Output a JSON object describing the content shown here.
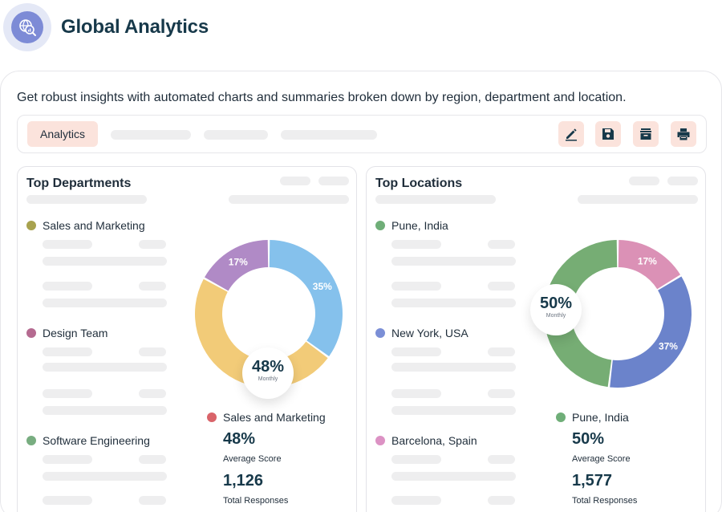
{
  "app": {
    "title": "Global Analytics",
    "logo_icon": "globe-analytics-icon"
  },
  "description": "Get robust insights with automated charts and summaries broken down by region, department and location.",
  "toolbar": {
    "tab_label": "Analytics",
    "buttons": [
      {
        "icon": "edit-icon"
      },
      {
        "icon": "save-icon"
      },
      {
        "icon": "archive-icon"
      },
      {
        "icon": "print-icon"
      }
    ]
  },
  "colors": {
    "accent_bg": "#fbe3dc",
    "title": "#17394a"
  },
  "departments": {
    "title": "Top Departments",
    "legend": [
      {
        "label": "Sales and Marketing",
        "color": "#a8a24e"
      },
      {
        "label": "Design Team",
        "color": "#b56a90"
      },
      {
        "label": "Software Engineering",
        "color": "#78ad80"
      }
    ],
    "center_value": "48%",
    "center_label": "Monthly",
    "stat": {
      "name": "Sales and Marketing",
      "color": "#d9646a",
      "score": "48%",
      "score_label": "Average Score",
      "responses": "1,126",
      "responses_label": "Total Responses"
    }
  },
  "locations": {
    "title": "Top Locations",
    "legend": [
      {
        "label": "Pune, India",
        "color": "#6fae78"
      },
      {
        "label": "New York, USA",
        "color": "#7b8fd6"
      },
      {
        "label": "Barcelona, Spain",
        "color": "#dc92c4"
      }
    ],
    "center_value": "50%",
    "center_label": "Monthly",
    "stat": {
      "name": "Pune, India",
      "color": "#6fae78",
      "score": "50%",
      "score_label": "Average Score",
      "responses": "1,577",
      "responses_label": "Total Responses"
    }
  },
  "chart_data": [
    {
      "type": "pie",
      "variant": "donut",
      "categories": [
        "",
        "",
        ""
      ],
      "values": [
        35,
        48,
        17
      ],
      "labels": [
        "35%",
        "",
        "17%"
      ],
      "colors": [
        "#85c1ec",
        "#f2cb78",
        "#b08ac6"
      ]
    },
    {
      "type": "pie",
      "variant": "donut",
      "categories": [
        "",
        "",
        ""
      ],
      "values": [
        17,
        37,
        50
      ],
      "labels": [
        "17%",
        "37%",
        ""
      ],
      "colors": [
        "#db91b6",
        "#6b83cb",
        "#76ad74"
      ]
    }
  ]
}
